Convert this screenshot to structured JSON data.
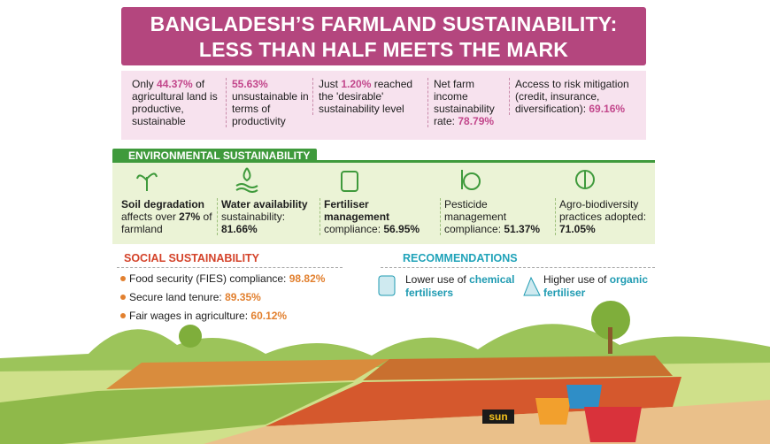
{
  "header": {
    "title": [
      "BANGLADESH’S FARMLAND SUSTAINABILITY:",
      "LESS THAN HALF MEETS THE MARK"
    ]
  },
  "stats": [
    {
      "lead": "Only",
      "value": "44.37%",
      "rest": "of agricultural land is productive, sustainable"
    },
    {
      "value": "55.63%",
      "rest": "unsustainable in terms of productivity"
    },
    {
      "lead": "Just",
      "value": "1.20%",
      "rest": "reached the 'desirable' sustainability level"
    },
    {
      "lead": "Net farm income sustainability rate:",
      "value": "78.79%"
    },
    {
      "lead": "Access to risk mitigation (credit, insurance, diversification):",
      "value": "69.16%"
    }
  ],
  "environmental": {
    "heading": "ENVIRONMENTAL SUSTAINABILITY",
    "items": [
      {
        "title": "Soil degradation",
        "text": "affects over",
        "value": "27%",
        "rest": "of farmland"
      },
      {
        "title": "Water availability",
        "text": "sustainability:",
        "value": "81.66%"
      },
      {
        "title": "Fertiliser management",
        "text": "compliance:",
        "value": "56.95%"
      },
      {
        "text": "Pesticide management compliance:",
        "value": "51.37%"
      },
      {
        "text": "Agro-biodiversity practices adopted:",
        "value": "71.05%"
      }
    ]
  },
  "social": {
    "heading": "SOCIAL SUSTAINABILITY",
    "items": [
      {
        "text": "Food security (FIES) compliance:",
        "value": "98.82%"
      },
      {
        "text": "Secure land tenure:",
        "value": "89.35%"
      },
      {
        "text": "Fair wages in agriculture:",
        "value": "60.12%"
      }
    ]
  },
  "recommendations": {
    "heading": "RECOMMENDATIONS",
    "items": [
      {
        "text": "Lower use of",
        "highlight": "chemical fertilisers"
      },
      {
        "text": "Higher use of",
        "highlight": "organic fertiliser"
      }
    ]
  },
  "logo": "sun"
}
